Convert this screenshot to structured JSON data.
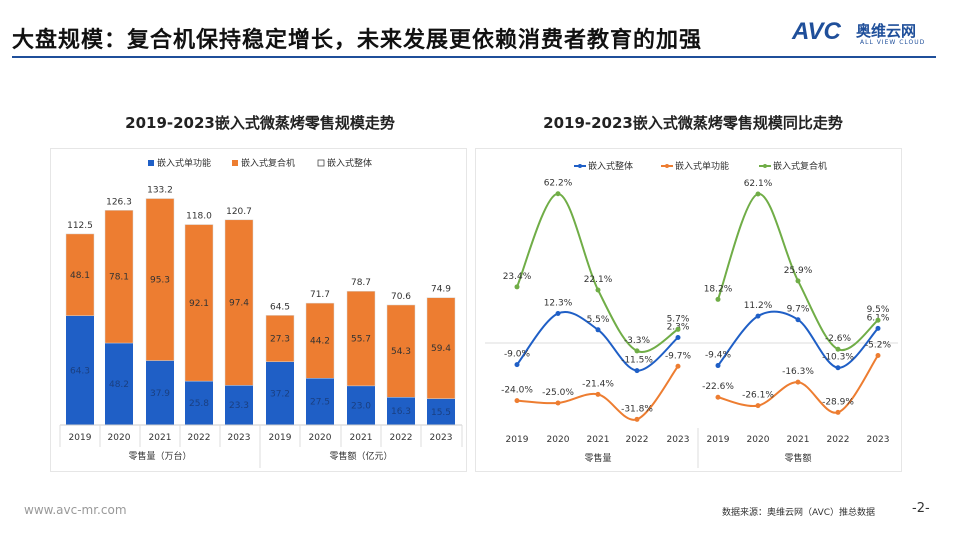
{
  "header": {
    "title": "大盘规模：复合机保持稳定增长，未来发展更依赖消费者教育的加强",
    "logo_text": "AVC",
    "logo_cn": "奥维云网",
    "logo_en": "ALL VIEW CLOUD"
  },
  "footer": {
    "website": "www.avc-mr.com",
    "source": "数据来源：奥维云网（AVC）推总数据",
    "page": "-2-"
  },
  "colors": {
    "blue": "#1f5fc6",
    "orange": "#ed7d31",
    "green": "#70ad47",
    "accent": "#1f4f9a"
  },
  "chart_data": [
    {
      "type": "bar",
      "stacked": true,
      "title": "2019-2023嵌入式微蒸烤零售规模走势",
      "legend": [
        "嵌入式单功能",
        "嵌入式复合机",
        "嵌入式整体"
      ],
      "groups": [
        {
          "label": "零售量（万台）",
          "categories": [
            "2019",
            "2020",
            "2021",
            "2022",
            "2023"
          ],
          "series": [
            {
              "name": "嵌入式单功能",
              "values": [
                "64.3",
                "48.2",
                "37.9",
                "25.8",
                "23.3"
              ]
            },
            {
              "name": "嵌入式复合机",
              "values": [
                "48.1",
                "78.1",
                "95.3",
                "92.1",
                "97.4"
              ]
            },
            {
              "name": "嵌入式整体",
              "values": [
                "112.5",
                "126.3",
                "133.2",
                "118.0",
                "120.7"
              ]
            }
          ]
        },
        {
          "label": "零售额（亿元）",
          "categories": [
            "2019",
            "2020",
            "2021",
            "2022",
            "2023"
          ],
          "series": [
            {
              "name": "嵌入式单功能",
              "values": [
                "37.2",
                "27.5",
                "23.0",
                "16.3",
                "15.5"
              ]
            },
            {
              "name": "嵌入式复合机",
              "values": [
                "27.3",
                "44.2",
                "55.7",
                "54.3",
                "59.4"
              ]
            },
            {
              "name": "嵌入式整体",
              "values": [
                "64.5",
                "71.7",
                "78.7",
                "70.6",
                "74.9"
              ]
            }
          ]
        }
      ]
    },
    {
      "type": "line",
      "title": "2019-2023嵌入式微蒸烤零售规模同比走势",
      "legend": [
        "嵌入式整体",
        "嵌入式单功能",
        "嵌入式复合机"
      ],
      "groups": [
        {
          "label": "零售量",
          "categories": [
            "2019",
            "2020",
            "2021",
            "2022",
            "2023"
          ],
          "series": [
            {
              "name": "嵌入式整体",
              "values": [
                -9.0,
                12.3,
                5.5,
                -11.5,
                2.3
              ],
              "labels": [
                "-9.0%",
                "12.3%",
                "5.5%",
                "-11.5%",
                "2.3%"
              ]
            },
            {
              "name": "嵌入式单功能",
              "values": [
                -24.0,
                -25.0,
                -21.4,
                -31.8,
                -9.7
              ],
              "labels": [
                "-24.0%",
                "-25.0%",
                "-21.4%",
                "-31.8%",
                "-9.7%"
              ]
            },
            {
              "name": "嵌入式复合机",
              "values": [
                23.4,
                62.2,
                22.1,
                -3.3,
                5.7
              ],
              "labels": [
                "23.4%",
                "62.2%",
                "22.1%",
                "-3.3%",
                "5.7%"
              ]
            }
          ]
        },
        {
          "label": "零售额",
          "categories": [
            "2019",
            "2020",
            "2021",
            "2022",
            "2023"
          ],
          "series": [
            {
              "name": "嵌入式整体",
              "values": [
                -9.4,
                11.2,
                9.7,
                -10.3,
                6.1
              ],
              "labels": [
                "-9.4%",
                "11.2%",
                "9.7%",
                "-10.3%",
                "6.1%"
              ]
            },
            {
              "name": "嵌入式单功能",
              "values": [
                -22.6,
                -26.1,
                -16.3,
                -28.9,
                -5.2
              ],
              "labels": [
                "-22.6%",
                "-26.1%",
                "-16.3%",
                "-28.9%",
                "-5.2%"
              ]
            },
            {
              "name": "嵌入式复合机",
              "values": [
                18.2,
                62.1,
                25.9,
                -2.6,
                9.5
              ],
              "labels": [
                "18.2%",
                "62.1%",
                "25.9%",
                "-2.6%",
                "9.5%"
              ]
            }
          ]
        }
      ]
    }
  ]
}
